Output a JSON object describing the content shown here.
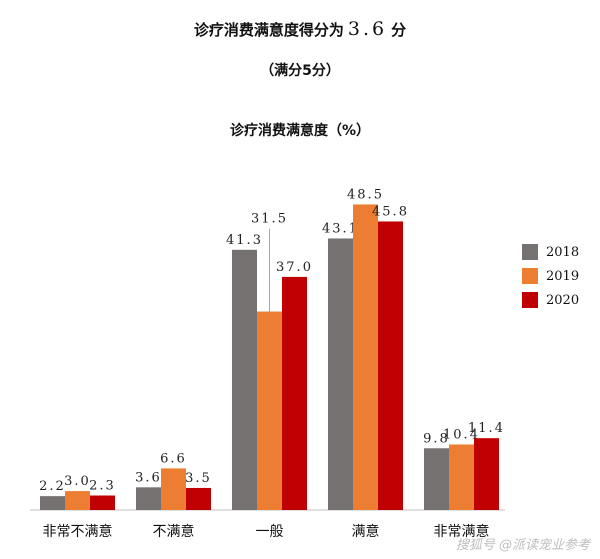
{
  "headline": {
    "prefix": "诊疗消费满意度得分为",
    "score": "3.6",
    "suffix": "分"
  },
  "subhead": "（满分5分）",
  "watermark": "搜狐号 @派读宠业参考",
  "chart_data": {
    "type": "bar",
    "title": "诊疗消费满意度（%）",
    "categories": [
      "非常不满意",
      "不满意",
      "一般",
      "满意",
      "非常满意"
    ],
    "series": [
      {
        "name": "2018",
        "color": "#767171",
        "values": [
          2.2,
          3.6,
          41.3,
          43.1,
          9.8
        ]
      },
      {
        "name": "2019",
        "color": "#ED7D31",
        "values": [
          3.0,
          6.6,
          31.5,
          48.5,
          10.4
        ]
      },
      {
        "name": "2020",
        "color": "#C00000",
        "values": [
          2.3,
          3.5,
          37.0,
          45.8,
          11.4
        ]
      }
    ],
    "value_labels": [
      [
        "2.2",
        "3.6",
        "41.3",
        "43.1",
        "9.8"
      ],
      [
        "3.0",
        "6.6",
        "31.5",
        "48.5",
        "10.4"
      ],
      [
        "2.3",
        "3.5",
        "37.0",
        "45.8",
        "11.4"
      ]
    ],
    "ylim": [
      0,
      50
    ],
    "legend_position": "right",
    "grid": false
  }
}
